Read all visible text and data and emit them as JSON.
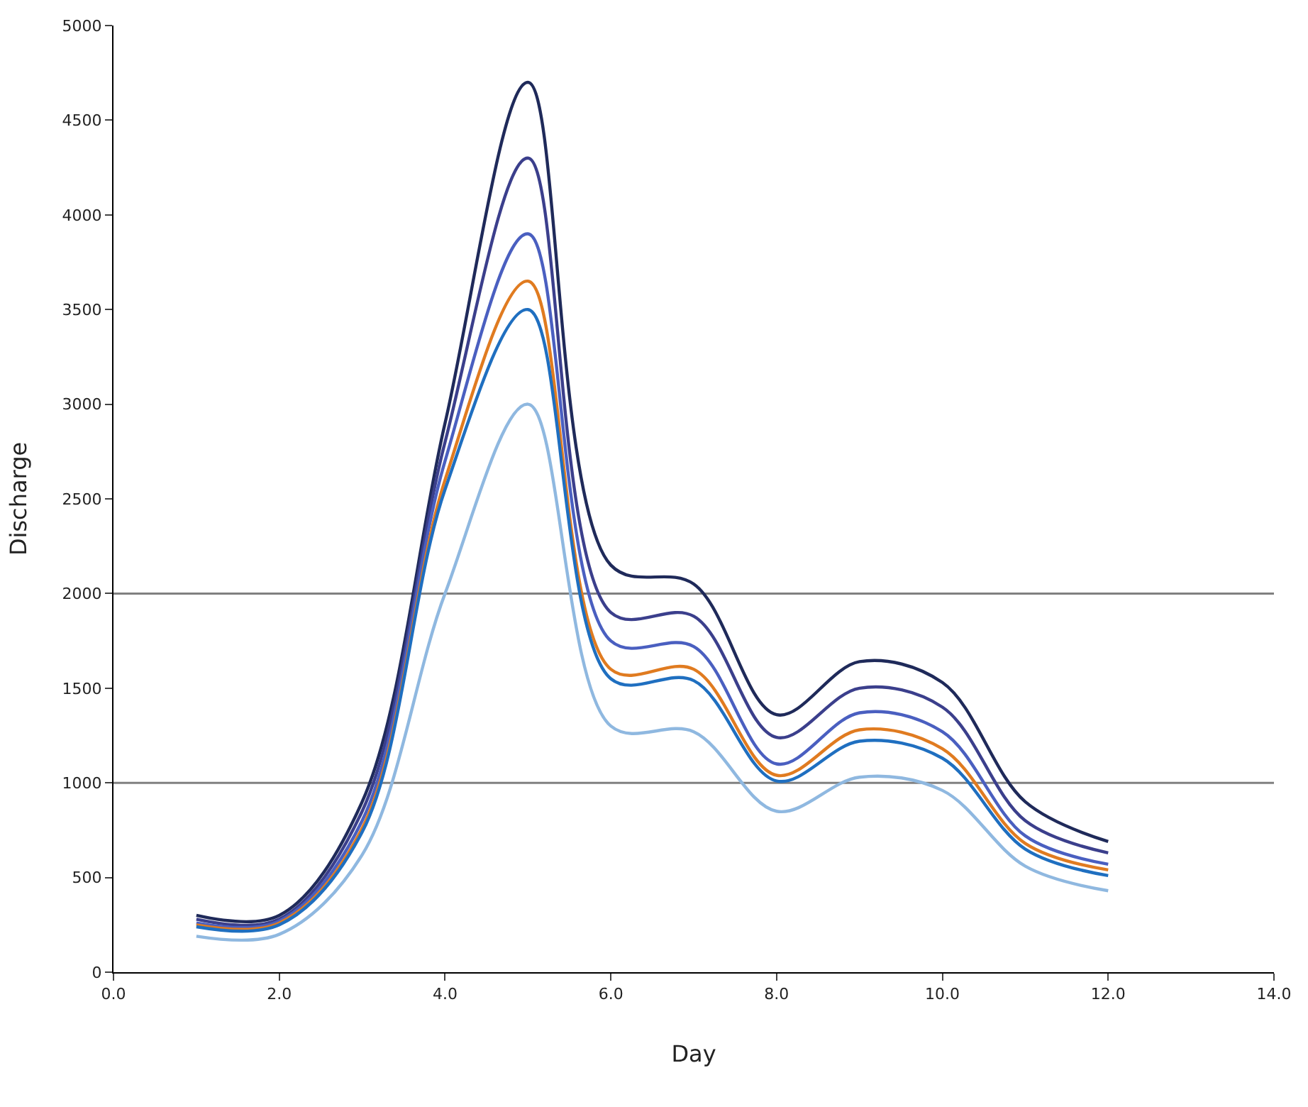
{
  "chart_data": {
    "type": "line",
    "xlabel": "Day",
    "ylabel": "Discharge",
    "x": [
      1,
      2,
      3,
      4,
      5,
      6,
      7,
      8,
      9,
      10,
      11,
      12
    ],
    "series": [
      {
        "color": "#1f2a5a",
        "values": [
          300,
          300,
          900,
          2900,
          4700,
          2150,
          2050,
          1360,
          1640,
          1530,
          900,
          690
        ]
      },
      {
        "color": "#3b3f8c",
        "values": [
          280,
          280,
          850,
          2800,
          4300,
          1900,
          1880,
          1240,
          1500,
          1400,
          800,
          630
        ]
      },
      {
        "color": "#4a5fc0",
        "values": [
          260,
          270,
          800,
          2700,
          3900,
          1750,
          1720,
          1100,
          1370,
          1270,
          720,
          570
        ]
      },
      {
        "color": "#e07b20",
        "values": [
          250,
          260,
          760,
          2600,
          3650,
          1600,
          1600,
          1040,
          1280,
          1180,
          680,
          540
        ]
      },
      {
        "color": "#1f6fc0",
        "values": [
          240,
          250,
          740,
          2550,
          3500,
          1550,
          1540,
          1010,
          1220,
          1130,
          650,
          510
        ]
      },
      {
        "color": "#8fb8e0",
        "values": [
          190,
          200,
          620,
          2000,
          3000,
          1300,
          1270,
          850,
          1030,
          960,
          560,
          430
        ]
      }
    ],
    "xlim": [
      0,
      14
    ],
    "xticks": [
      {
        "value": 0,
        "label": "0.0"
      },
      {
        "value": 2,
        "label": "2.0"
      },
      {
        "value": 4,
        "label": "4.0"
      },
      {
        "value": 6,
        "label": "6.0"
      },
      {
        "value": 8,
        "label": "8.0"
      },
      {
        "value": 10,
        "label": "10.0"
      },
      {
        "value": 12,
        "label": "12.0"
      },
      {
        "value": 14,
        "label": "14.0"
      }
    ],
    "ylim": [
      0,
      5000
    ],
    "yticks": [
      0,
      500,
      1000,
      1500,
      2000,
      2500,
      3000,
      3500,
      4000,
      4500,
      5000
    ],
    "ref_lines": [
      {
        "axis": "y",
        "value": 1000,
        "color": "#808080"
      },
      {
        "axis": "y",
        "value": 2000,
        "color": "#808080"
      }
    ],
    "marker": "none",
    "line_style": "solid"
  }
}
